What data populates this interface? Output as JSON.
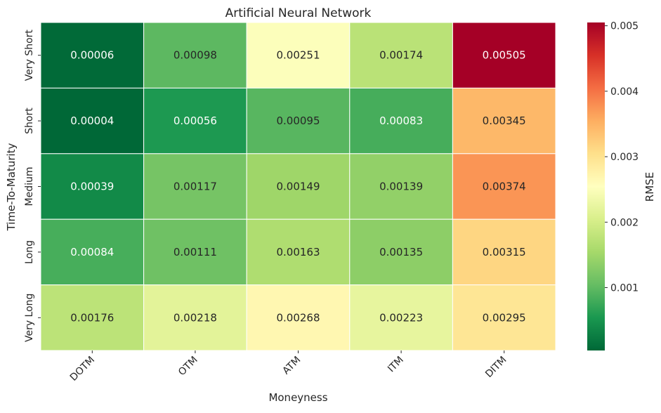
{
  "chart_data": {
    "type": "heatmap",
    "title": "Artificial Neural Network",
    "xlabel": "Moneyness",
    "ylabel": "Time-To-Maturity",
    "x_categories": [
      "DOTM",
      "OTM",
      "ATM",
      "ITM",
      "DITM"
    ],
    "y_categories": [
      "Very Short",
      "Short",
      "Medium",
      "Long",
      "Very Long"
    ],
    "values": [
      [
        6e-05,
        0.00098,
        0.00251,
        0.00174,
        0.00505
      ],
      [
        4e-05,
        0.00056,
        0.00095,
        0.00083,
        0.00345
      ],
      [
        0.00039,
        0.00117,
        0.00149,
        0.00139,
        0.00374
      ],
      [
        0.00084,
        0.00111,
        0.00163,
        0.00135,
        0.00315
      ],
      [
        0.00176,
        0.00218,
        0.00268,
        0.00223,
        0.00295
      ]
    ],
    "annotations": [
      [
        "0.00006",
        "0.00098",
        "0.00251",
        "0.00174",
        "0.00505"
      ],
      [
        "0.00004",
        "0.00056",
        "0.00095",
        "0.00083",
        "0.00345"
      ],
      [
        "0.00039",
        "0.00117",
        "0.00149",
        "0.00139",
        "0.00374"
      ],
      [
        "0.00084",
        "0.00111",
        "0.00163",
        "0.00135",
        "0.00315"
      ],
      [
        "0.00176",
        "0.00218",
        "0.00268",
        "0.00223",
        "0.00295"
      ]
    ],
    "colorbar": {
      "label": "RMSE",
      "colormap": "RdYlGn_r",
      "vmin": 4e-05,
      "vmax": 0.00505,
      "ticks": [
        0.001,
        0.002,
        0.003,
        0.004,
        0.005
      ],
      "tick_labels": [
        "0.001",
        "0.002",
        "0.003",
        "0.004",
        "0.005"
      ]
    },
    "grid": false,
    "legend": "colorbar-right"
  }
}
